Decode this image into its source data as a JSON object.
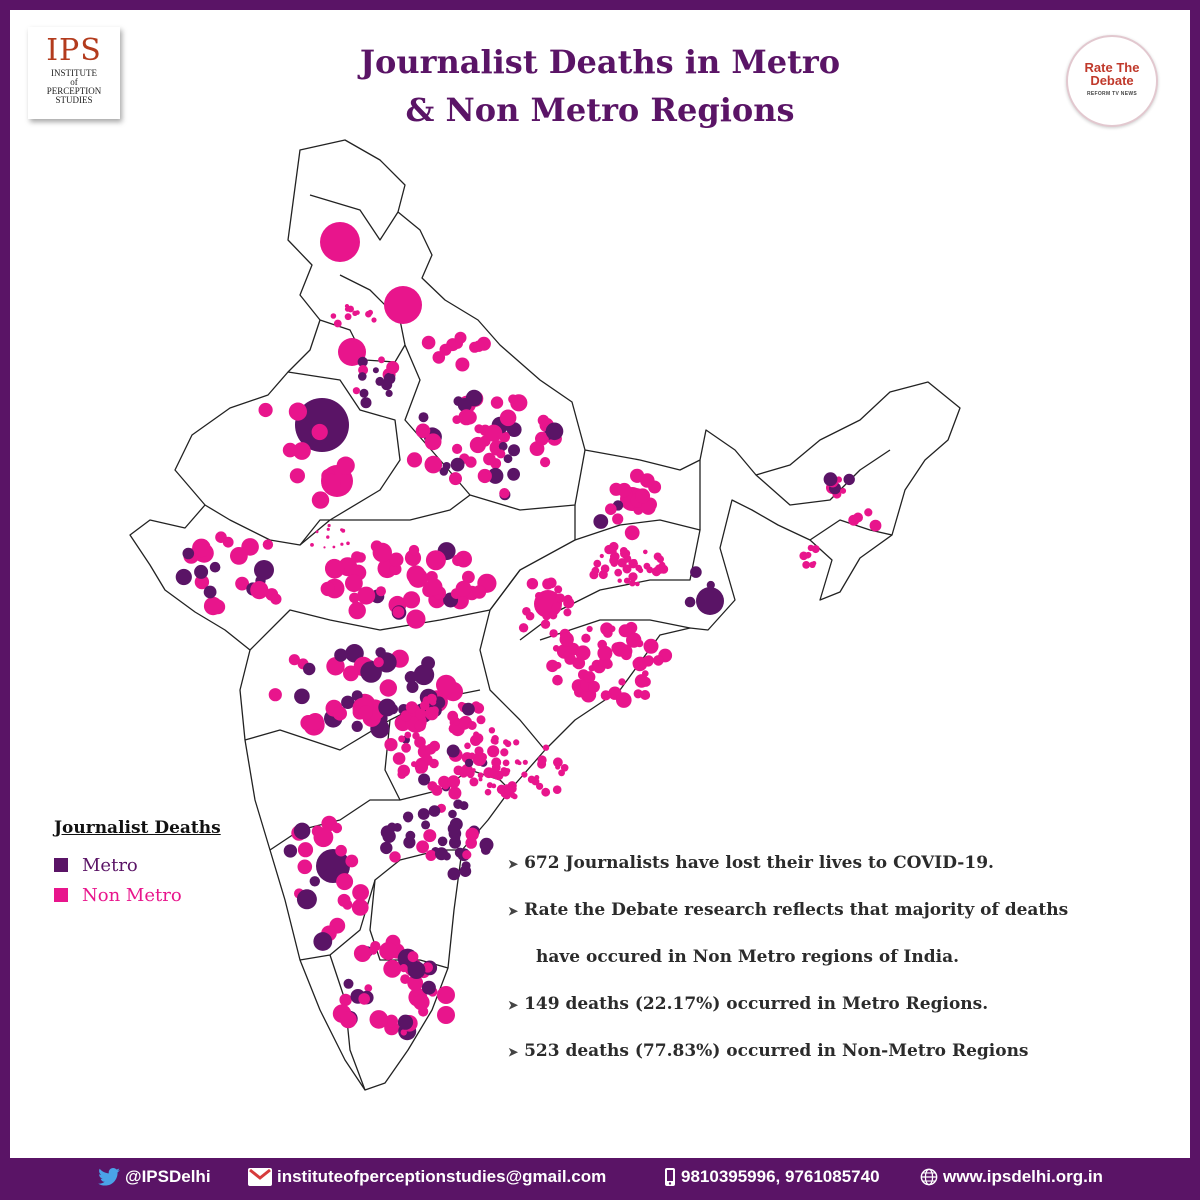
{
  "logos": {
    "ips": {
      "main": "IPS",
      "line1": "INSTITUTE",
      "line2": "of",
      "line3": "PERCEPTION",
      "line4": "STUDIES"
    },
    "rtd": {
      "line1": "Rate The",
      "line2": "Debate",
      "tagline": "REFORM TV NEWS"
    }
  },
  "title": {
    "line1": "Journalist Deaths in Metro",
    "line2": "& Non Metro Regions"
  },
  "legend": {
    "title": "Journalist Deaths",
    "items": [
      {
        "label": "Metro",
        "color": "#5a1466"
      },
      {
        "label": "Non Metro",
        "color": "#e8158c"
      }
    ]
  },
  "facts": [
    "672 Journalists have lost their lives to COVID-19.",
    "Rate the  Debate research reflects that majority of deaths",
    "have occured in Non Metro regions of India.",
    "149 deaths (22.17%) occurred in Metro Regions.",
    "523 deaths (77.83%) occurred in Non-Metro Regions"
  ],
  "totals": {
    "total_deaths": 672,
    "metro_deaths": 149,
    "metro_pct": 22.17,
    "non_metro_deaths": 523,
    "non_metro_pct": 77.83
  },
  "colors": {
    "metro": "#5a1466",
    "non_metro": "#e8158c",
    "frame": "#5a1466"
  },
  "footer": {
    "twitter": "@IPSDelhi",
    "email": "instituteofperceptionstudies@gmail.com",
    "phone": "9810395996, 9761085740",
    "website": "www.ipsdelhi.org.in"
  }
}
